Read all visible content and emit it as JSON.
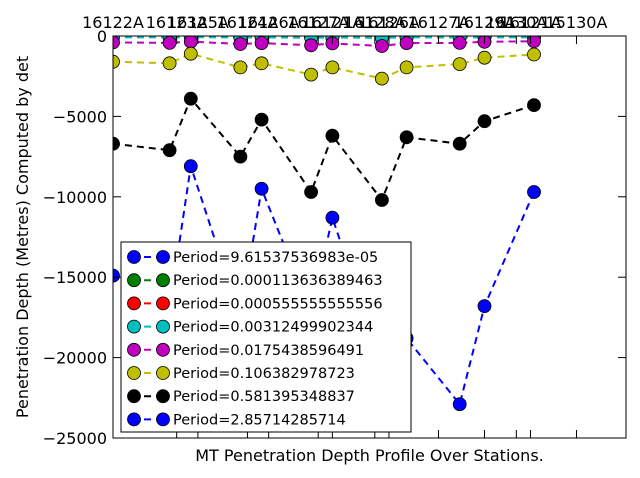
{
  "chart_data": {
    "type": "line",
    "title": "",
    "xlabel": "MT Penetration Depth Profile Over Stations.",
    "ylabel": "Penetration Depth (Metres) Computed by det",
    "ylim": [
      -25000,
      0
    ],
    "yticks": [
      0,
      -5000,
      -10000,
      -15000,
      -20000,
      -25000
    ],
    "ytick_labels": [
      "0",
      "−5000",
      "−10000",
      "−15000",
      "−20000",
      "−25000"
    ],
    "xlim": [
      0,
      14.5
    ],
    "x": [
      0,
      1.8,
      2.4,
      3.8,
      4.4,
      5.8,
      6.2,
      7.4,
      7.8,
      9.2,
      10.5,
      11.4,
      11.8,
      13.1
    ],
    "x_tick_labels": [
      {
        "x": 0,
        "label": "16122A"
      },
      {
        "x": 1.8,
        "label": "16123A"
      },
      {
        "x": 2.4,
        "label": "16125A"
      },
      {
        "x": 3.8,
        "label": "16124A"
      },
      {
        "x": 4.4,
        "label": "16126A"
      },
      {
        "x": 5.8,
        "label": "16127A"
      },
      {
        "x": 6.2,
        "label": "16121A"
      },
      {
        "x": 7.4,
        "label": "16128A"
      },
      {
        "x": 7.8,
        "label": "16126A"
      },
      {
        "x": 9.2,
        "label": "16127A"
      },
      {
        "x": 10.5,
        "label": "16129A"
      },
      {
        "x": 11.4,
        "label": "16130A"
      },
      {
        "x": 11.8,
        "label": "16121A"
      },
      {
        "x": 13.1,
        "label": "15130A"
      }
    ],
    "legend_position": "lower-left",
    "grid": false,
    "series": [
      {
        "name": "Period=9.61537536983e-05",
        "color": "#0000ff",
        "points": [
          [
            0,
            -10
          ],
          [
            1.6,
            -10
          ],
          [
            2.2,
            -8
          ],
          [
            3.6,
            -12
          ],
          [
            4.2,
            -10
          ],
          [
            5.6,
            -12
          ],
          [
            6.2,
            -10
          ],
          [
            7.6,
            -14
          ],
          [
            8.3,
            -10
          ],
          [
            9.8,
            -10
          ],
          [
            10.5,
            -8
          ],
          [
            11.9,
            -10
          ]
        ]
      },
      {
        "name": "Period=0.000113636389463",
        "color": "#008000",
        "points": [
          [
            0,
            -12
          ],
          [
            1.6,
            -12
          ],
          [
            2.2,
            -10
          ],
          [
            3.6,
            -14
          ],
          [
            4.2,
            -12
          ],
          [
            5.6,
            -14
          ],
          [
            6.2,
            -12
          ],
          [
            7.6,
            -16
          ],
          [
            8.3,
            -12
          ],
          [
            9.8,
            -12
          ],
          [
            10.5,
            -10
          ],
          [
            11.9,
            -12
          ]
        ]
      },
      {
        "name": "Period=0.000555555555556",
        "color": "#ff0000",
        "points": [
          [
            0,
            -30
          ],
          [
            1.6,
            -32
          ],
          [
            2.2,
            -25
          ],
          [
            3.6,
            -38
          ],
          [
            4.2,
            -34
          ],
          [
            5.6,
            -40
          ],
          [
            6.2,
            -32
          ],
          [
            7.6,
            -45
          ],
          [
            8.3,
            -34
          ],
          [
            9.8,
            -35
          ],
          [
            10.5,
            -30
          ],
          [
            11.9,
            -33
          ]
        ]
      },
      {
        "name": "Period=0.00312499902344",
        "color": "#00bfbf",
        "points": [
          [
            0,
            -80
          ],
          [
            1.6,
            -90
          ],
          [
            2.2,
            -70
          ],
          [
            3.6,
            -100
          ],
          [
            4.2,
            -90
          ],
          [
            5.6,
            -110
          ],
          [
            6.2,
            -95
          ],
          [
            7.6,
            -120
          ],
          [
            8.3,
            -90
          ],
          [
            9.8,
            -95
          ],
          [
            10.5,
            -80
          ],
          [
            11.9,
            -85
          ]
        ]
      },
      {
        "name": "Period=0.0175438596491",
        "color": "#bf00bf",
        "points": [
          [
            0,
            -400
          ],
          [
            1.6,
            -430
          ],
          [
            2.2,
            -350
          ],
          [
            3.6,
            -500
          ],
          [
            4.2,
            -440
          ],
          [
            5.6,
            -580
          ],
          [
            6.2,
            -460
          ],
          [
            7.6,
            -620
          ],
          [
            8.3,
            -440
          ],
          [
            9.8,
            -430
          ],
          [
            10.5,
            -360
          ],
          [
            11.9,
            -330
          ]
        ]
      },
      {
        "name": "Period=0.106382978723",
        "color": "#bfbf00",
        "points": [
          [
            0,
            -1600
          ],
          [
            1.6,
            -1700
          ],
          [
            2.2,
            -1100
          ],
          [
            3.6,
            -1950
          ],
          [
            4.2,
            -1700
          ],
          [
            5.6,
            -2400
          ],
          [
            6.2,
            -1950
          ],
          [
            7.6,
            -2650
          ],
          [
            8.3,
            -1950
          ],
          [
            9.8,
            -1750
          ],
          [
            10.5,
            -1350
          ],
          [
            11.9,
            -1150
          ]
        ]
      },
      {
        "name": "Period=0.581395348837",
        "color": "#000000",
        "points": [
          [
            0,
            -6700
          ],
          [
            1.6,
            -7100
          ],
          [
            2.2,
            -3900
          ],
          [
            3.6,
            -7500
          ],
          [
            4.2,
            -5200
          ],
          [
            5.6,
            -9700
          ],
          [
            6.2,
            -6200
          ],
          [
            7.6,
            -10200
          ],
          [
            8.3,
            -6300
          ],
          [
            9.8,
            -6700
          ],
          [
            10.5,
            -5300
          ],
          [
            11.9,
            -4300
          ]
        ]
      },
      {
        "name": "Period=2.85714285714",
        "color": "#0000ff",
        "points": [
          [
            0,
            -14900
          ],
          [
            1.6,
            -16900
          ],
          [
            2.2,
            -8100
          ],
          [
            3.6,
            -17500
          ],
          [
            4.2,
            -9500
          ],
          [
            5.6,
            -17200
          ],
          [
            6.2,
            -11300
          ],
          [
            7.6,
            -20500
          ],
          [
            8.3,
            -18800
          ],
          [
            9.8,
            -22900
          ],
          [
            10.5,
            -16800
          ],
          [
            11.9,
            -9700
          ]
        ]
      }
    ]
  }
}
